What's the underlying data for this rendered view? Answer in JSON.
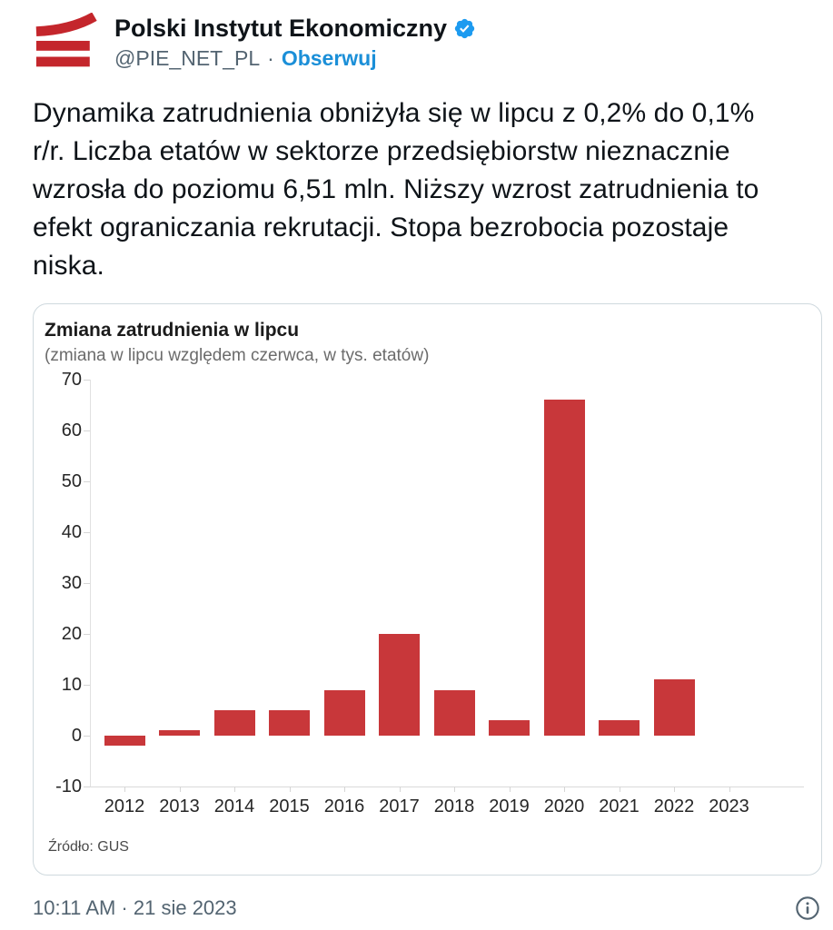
{
  "header": {
    "display_name": "Polski Instytut Ekonomiczny",
    "handle": "@PIE_NET_PL",
    "separator": "·",
    "follow_label": "Obserwuj",
    "logo_icon": "pie-three-bars-logo",
    "verified_icon": "verified-badge"
  },
  "tweet": {
    "text": "Dynamika zatrudnienia obniżyła się w lipcu z 0,2% do 0,1% r/r. Liczba etatów w sektorze przedsiębiorstw nieznacznie wzrosła do poziomu 6,51 mln. Niższy wzrost zatrudnienia to efekt ograniczania rekrutacji. Stopa bezrobocia pozostaje niska."
  },
  "chart_data": {
    "type": "bar",
    "title": "Zmiana zatrudnienia w lipcu",
    "subtitle": "(zmiana w lipcu względem czerwca, w tys. etatów)",
    "source_note": "Źródło: GUS",
    "categories": [
      "2012",
      "2013",
      "2014",
      "2015",
      "2016",
      "2017",
      "2018",
      "2019",
      "2020",
      "2021",
      "2022",
      "2023"
    ],
    "values": [
      -2,
      1,
      5,
      5,
      9,
      20,
      9,
      3,
      66,
      3,
      11,
      null
    ],
    "ylim": [
      -10,
      70
    ],
    "ytick_step": 10,
    "yticks": [
      -10,
      0,
      10,
      20,
      30,
      40,
      50,
      60,
      70
    ],
    "bar_color": "#c8373a",
    "grid": false,
    "legend": "none",
    "xlabel": "",
    "ylabel": ""
  },
  "footer": {
    "timestamp": "10:11 AM · 21 sie 2023",
    "info_icon": "info-circle"
  },
  "colors": {
    "accent_red": "#c4262c",
    "bar_red": "#c8373a",
    "follow_blue": "#1b8fd8",
    "verified_blue": "#1d9bf0",
    "text_primary": "#0f1419",
    "text_secondary": "#536471",
    "card_border": "#cfd9de"
  }
}
